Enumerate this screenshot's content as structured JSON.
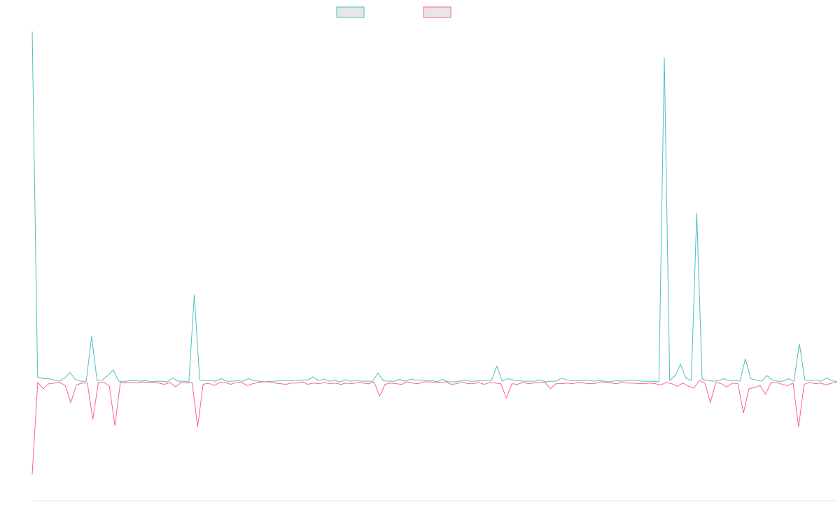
{
  "colors": {
    "series_up": "#4bc0c0",
    "series_down": "#ff6384",
    "legend_fill": "#e6e6e6",
    "axis": "#e6e6e6",
    "background": "#ffffff"
  },
  "chart_data": {
    "type": "line",
    "title": "",
    "xlabel": "",
    "ylabel": "",
    "grid": false,
    "legend_position": "top",
    "ylim": [
      -1.9,
      5.7
    ],
    "series": [
      {
        "values": [
          5.6,
          0.08,
          0.05,
          0.05,
          0.03,
          0.01,
          0.06,
          0.15,
          0.04,
          0.01,
          0.01,
          0.73,
          0.02,
          0.03,
          0.1,
          0.19,
          0.01,
          0,
          0.02,
          0.02,
          0.01,
          0.02,
          0,
          0.01,
          0.01,
          0,
          0.06,
          0.01,
          0.01,
          0,
          1.39,
          0.03,
          0.02,
          0.02,
          0.01,
          0.05,
          0.01,
          0.01,
          0.02,
          0.01,
          0.05,
          0.02,
          0.01,
          0,
          0.01,
          0.01,
          0.02,
          0.02,
          0.02,
          0.02,
          0.03,
          0.03,
          0.08,
          0.02,
          0.04,
          0.01,
          0.02,
          0,
          0.03,
          0.01,
          0.02,
          0.01,
          0.01,
          0.01,
          0.14,
          0.02,
          0.01,
          0.01,
          0.04,
          0.01,
          0.04,
          0.03,
          0.03,
          0.02,
          0.02,
          0,
          0.04,
          0,
          0,
          0.01,
          0.03,
          0.01,
          0.01,
          0.02,
          0.02,
          0.02,
          0.25,
          0.01,
          0.05,
          0.03,
          0.02,
          0.01,
          0.01,
          0.01,
          0.03,
          0,
          0.01,
          0.01,
          0.06,
          0.03,
          0.02,
          0.02,
          0.02,
          0.03,
          0.01,
          0.02,
          0.01,
          0,
          0.02,
          0.01,
          0.02,
          0.03,
          0.02,
          0.01,
          0.01,
          0.01,
          0,
          5.18,
          0.02,
          0.1,
          0.28,
          0.06,
          0.02,
          2.7,
          0.04,
          0.02,
          0.01,
          0.02,
          0.05,
          0.02,
          0.02,
          0.01,
          0.37,
          0.05,
          0.03,
          0.01,
          0.1,
          0.03,
          0.01,
          0.01,
          0.05,
          0.01,
          0.61,
          0.03,
          0.02,
          0.03,
          0.01,
          0.06,
          0.02,
          0
        ]
      },
      {
        "values": [
          -1.48,
          -0.01,
          -0.11,
          -0.03,
          -0.02,
          -0.01,
          -0.06,
          -0.33,
          -0.05,
          -0.02,
          -0.02,
          -0.6,
          -0.01,
          -0.01,
          -0.07,
          -0.7,
          -0.01,
          -0.02,
          -0.01,
          -0.02,
          0,
          -0.01,
          -0.01,
          -0.02,
          -0.04,
          -0.01,
          -0.08,
          -0.01,
          -0.02,
          -0.01,
          -0.72,
          -0.04,
          -0.02,
          -0.06,
          -0.01,
          -0.01,
          -0.04,
          -0.01,
          -0.01,
          -0.06,
          -0.03,
          -0.01,
          0,
          0,
          -0.02,
          -0.03,
          -0.04,
          -0.02,
          -0.02,
          0,
          -0.04,
          -0.02,
          -0.03,
          -0.01,
          -0.03,
          -0.02,
          -0.04,
          -0.02,
          -0.03,
          -0.01,
          -0.02,
          -0.03,
          0,
          -0.23,
          -0.04,
          -0.02,
          -0.03,
          -0.04,
          0,
          -0.02,
          -0.03,
          0,
          0,
          -0.01,
          -0.01,
          0,
          -0.04,
          -0.03,
          0,
          -0.03,
          -0.03,
          -0.01,
          -0.04,
          -0.01,
          -0.02,
          -0.03,
          -0.26,
          -0.03,
          -0.04,
          -0.01,
          -0.03,
          -0.02,
          -0.01,
          -0.01,
          -0.11,
          -0.03,
          -0.03,
          -0.02,
          -0.03,
          -0.01,
          -0.02,
          -0.03,
          -0.03,
          0,
          -0.01,
          -0.02,
          -0.03,
          -0.01,
          -0.02,
          -0.02,
          -0.03,
          -0.03,
          -0.02,
          -0.03,
          -0.05,
          -0.01,
          -0.03,
          -0.07,
          -0.02,
          -0.07,
          -0.1,
          0.02,
          -0.02,
          -0.33,
          -0.01,
          -0.03,
          -0.08,
          -0.02,
          -0.03,
          -0.5,
          -0.11,
          -0.09,
          -0.06,
          -0.2,
          -0.01,
          -0.01,
          -0.04,
          -0.06,
          -0.02,
          -0.72,
          -0.04,
          -0.01,
          -0.03,
          -0.02,
          -0.05,
          -0.02,
          0
        ]
      }
    ]
  }
}
